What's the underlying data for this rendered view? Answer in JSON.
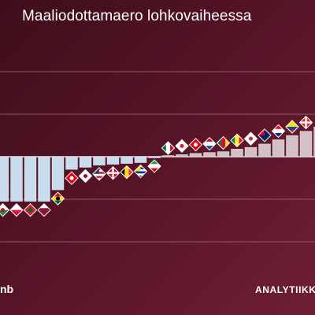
{
  "header": {
    "title": "Maaliodottamaero lohkovaiheessa"
  },
  "footer": {
    "left_logo_text": "nb",
    "right_logo_text": "ANALYTIIKK"
  },
  "colors": {
    "background": "#5a1529",
    "gridline": "#b07585",
    "negative_bar": "#c8dcee",
    "positive_bar": "#d2c2c8",
    "zero_line": "#e8dde1"
  },
  "chart_data": {
    "type": "bar",
    "title": "Maaliodottamaero lohkovaiheessa",
    "xlabel": "",
    "ylabel": "",
    "ylim": [
      -3,
      2.5
    ],
    "grid": true,
    "categories": [
      "team-01",
      "team-02",
      "team-03",
      "team-04",
      "team-05",
      "team-06",
      "team-07",
      "team-08",
      "team-09",
      "team-10",
      "team-11",
      "team-12",
      "team-13",
      "team-14",
      "team-15",
      "team-16",
      "team-17",
      "team-18",
      "team-19",
      "team-20",
      "team-21",
      "team-22",
      "team-23",
      "team-24",
      "team-25",
      "team-26",
      "team-27",
      "team-28",
      "team-29",
      "team-30",
      "team-31",
      "team-32"
    ],
    "values": [
      -1.05,
      -1.05,
      -1.05,
      -1.05,
      -0.78,
      -0.3,
      -0.25,
      -0.2,
      -0.18,
      -0.16,
      -0.14,
      -0.02,
      0.0,
      0.05,
      0.08,
      0.1,
      0.12,
      0.18,
      0.22,
      0.3,
      0.4,
      0.5,
      0.6,
      0.7,
      0.8,
      0.95,
      1.0,
      1.05,
      1.3,
      1.4,
      1.55,
      1.6
    ],
    "flags": [
      "wales-flag",
      "poland-flag",
      "morocco-flag",
      "qatar-flag",
      "ghana-flag",
      "tunisia-flag",
      "japan-flag",
      "usa-flag",
      "denmark-flag",
      "belgium-flag",
      "uruguay-flag",
      "iran-flag",
      "mexico-flag",
      "canada-flag",
      "tunisia-flag-2",
      "netherlands-flag",
      "cameroon-flag",
      "senegal-flag",
      "south-korea-flag",
      "australia-flag",
      "croatia-flag",
      "ecuador-flag",
      "switzerland-flag",
      "spain-flag",
      "england-flag",
      "serbia-flag",
      "costa-rica-flag",
      "germany-flag",
      "argentina-flag",
      "france-flag",
      "brazil-flag",
      "portugal-flag"
    ]
  }
}
